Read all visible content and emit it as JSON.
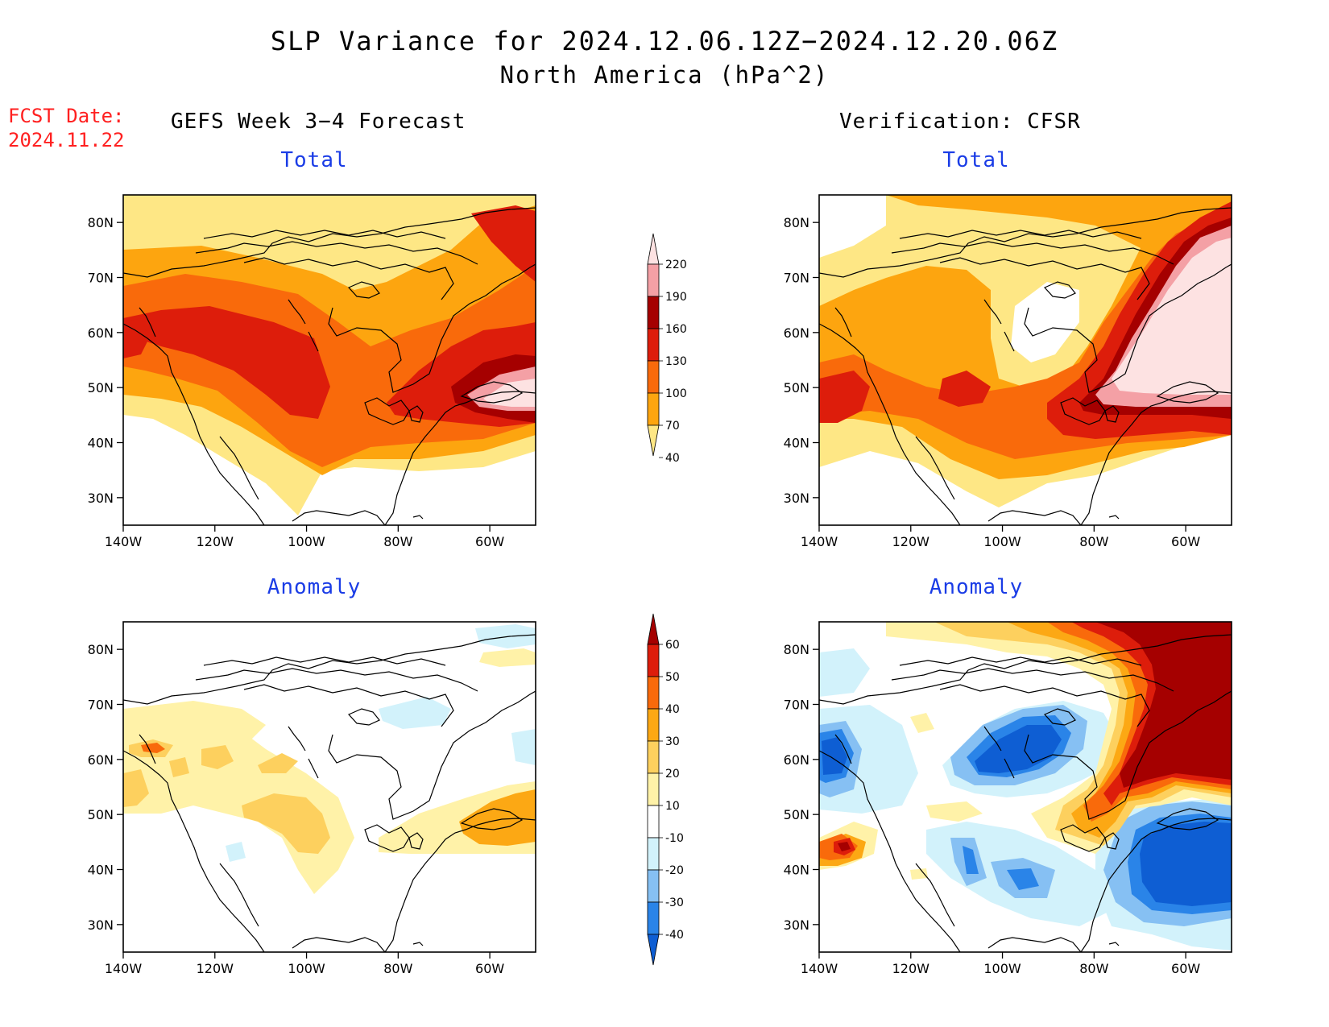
{
  "header": {
    "title": "SLP Variance for 2024.12.06.12Z−2024.12.20.06Z",
    "subtitle": "North America (hPa^2)"
  },
  "forecast_date": {
    "label": "FCST Date:",
    "value": "2024.11.22"
  },
  "columns": {
    "left": "GEFS Week 3−4 Forecast",
    "right": "Verification: CFSR"
  },
  "panel_titles": {
    "total": "Total",
    "anomaly": "Anomaly"
  },
  "axes": {
    "lat_labels": [
      "80N",
      "70N",
      "60N",
      "50N",
      "40N",
      "30N"
    ],
    "lon_labels": [
      "140W",
      "120W",
      "100W",
      "80W",
      "60W"
    ],
    "lon_range": [
      -140,
      -50
    ],
    "lat_range": [
      25,
      85
    ]
  },
  "colorbars": {
    "total": {
      "levels": [
        "40",
        "70",
        "100",
        "130",
        "160",
        "190",
        "220"
      ],
      "colors": [
        "#fee785",
        "#fda50f",
        "#f96a0b",
        "#dd1d0b",
        "#a50000",
        "#f4a0a5",
        "#fde2e2"
      ]
    },
    "anomaly": {
      "levels": [
        "-40",
        "-30",
        "-20",
        "-10",
        "10",
        "20",
        "30",
        "40",
        "50",
        "60"
      ],
      "colors": [
        "#0e5ed3",
        "#2a84e8",
        "#86c0f3",
        "#d2f2fb",
        "#ffffff",
        "#fff2a8",
        "#fdd05e",
        "#fca814",
        "#f96a0b",
        "#dd1d0b",
        "#a50000"
      ]
    }
  }
}
